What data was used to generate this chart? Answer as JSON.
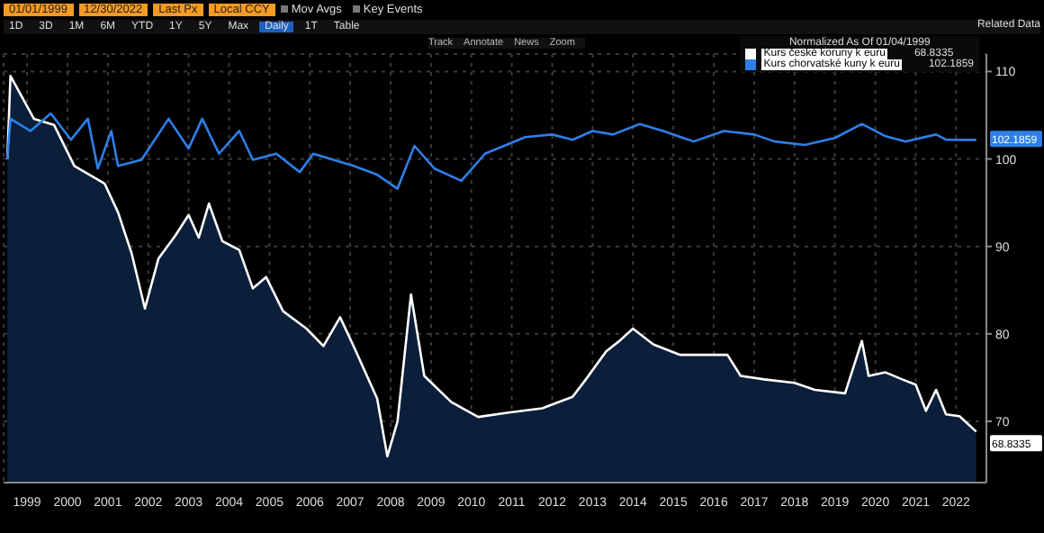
{
  "chart_data": {
    "type": "area",
    "legend_title": "Normalized As Of 01/04/1999",
    "annotations": [
      "01/01/1999",
      "12/30/2022",
      "Last Px",
      "Local CCY",
      "Mov Avgs",
      "Key Events",
      "1D",
      "3D",
      "1M",
      "6M",
      "YTD",
      "1Y",
      "5Y",
      "Max",
      "Daily",
      "1T",
      "Table",
      "Track",
      "Annotate",
      "News",
      "Zoom",
      "Related Data"
    ],
    "series": [
      {
        "name": "Kurs české koruny k euru",
        "color": "#ffffff",
        "x": [
          "1999-01-04",
          "1999-02",
          "1999-09",
          "2000-03",
          "2000-09",
          "2001-06",
          "2001-10",
          "2002-02",
          "2002-06",
          "2002-10",
          "2003-03",
          "2003-07",
          "2003-10",
          "2004-01",
          "2004-05",
          "2004-10",
          "2005-02",
          "2005-06",
          "2005-11",
          "2006-06",
          "2006-11",
          "2007-04",
          "2007-08",
          "2008-03",
          "2008-06",
          "2008-09",
          "2009-01",
          "2009-05",
          "2010-01",
          "2010-09",
          "2011-06",
          "2012-04",
          "2013-01",
          "2013-05",
          "2013-11",
          "2014-03",
          "2014-07",
          "2015-01",
          "2015-09",
          "2016-06",
          "2016-11",
          "2017-03",
          "2017-10",
          "2018-07",
          "2019-01",
          "2019-10",
          "2020-03",
          "2020-05",
          "2020-10",
          "2021-03",
          "2021-07",
          "2021-10",
          "2022-01",
          "2022-04",
          "2022-08",
          "2022-12-30"
        ],
        "values": [
          100,
          109.5,
          104.6,
          103.9,
          99.2,
          97.2,
          93.9,
          89.2,
          82.9,
          88.6,
          91.2,
          93.6,
          91,
          94.9,
          90.6,
          89.6,
          85.2,
          86.5,
          82.6,
          80.6,
          78.6,
          81.9,
          78.6,
          72.6,
          66,
          70,
          84.5,
          75.2,
          72.2,
          70.5,
          71,
          71.5,
          72.8,
          74.8,
          78,
          79.2,
          80.6,
          78.8,
          77.6,
          77.6,
          77.6,
          75.2,
          74.8,
          74.4,
          73.6,
          73.2,
          79.2,
          75.2,
          75.6,
          74.8,
          74.2,
          71.2,
          73.6,
          70.8,
          70.6,
          68.8335
        ],
        "value_labels": [
          null,
          null,
          null,
          null,
          null,
          null,
          null,
          null,
          null,
          null,
          null,
          null,
          null,
          null,
          null,
          null,
          null,
          null,
          null,
          null,
          null,
          null,
          null,
          null,
          null,
          null,
          null,
          null,
          null,
          null,
          null,
          null,
          null,
          null,
          null,
          null,
          null,
          null,
          null,
          null,
          null,
          null,
          null,
          null,
          null,
          null,
          null,
          null,
          null,
          null,
          null,
          null,
          null,
          null,
          null,
          "68.8335"
        ]
      },
      {
        "name": "Kurs chorvatské kuny k euru",
        "type": "line",
        "color": "#2f7fe8",
        "x": [
          "1999-01-04",
          "1999-02",
          "1999-08",
          "2000-02",
          "2000-08",
          "2001-01",
          "2001-04",
          "2001-08",
          "2001-10",
          "2002-05",
          "2003-01",
          "2003-07",
          "2003-11",
          "2004-04",
          "2004-10",
          "2005-02",
          "2005-09",
          "2006-04",
          "2006-08",
          "2007-08",
          "2008-03",
          "2008-09",
          "2009-02",
          "2009-08",
          "2010-04",
          "2010-11",
          "2011-11",
          "2012-07",
          "2013-01",
          "2013-07",
          "2014-01",
          "2014-09",
          "2015-04",
          "2016-01",
          "2016-10",
          "2017-07",
          "2018-01",
          "2018-10",
          "2019-07",
          "2020-03",
          "2020-10",
          "2021-04",
          "2022-01",
          "2022-04",
          "2022-12-30"
        ],
        "values": [
          100,
          104.6,
          103.2,
          105.2,
          102.2,
          104.6,
          98.9,
          103.2,
          99.2,
          99.9,
          104.6,
          101.2,
          104.6,
          100.6,
          103.2,
          99.9,
          100.6,
          98.5,
          100.6,
          99.2,
          98.2,
          96.6,
          101.5,
          98.9,
          97.5,
          100.6,
          102.5,
          102.8,
          102.2,
          103.2,
          102.8,
          104,
          103.2,
          102,
          103.2,
          102.8,
          102,
          101.6,
          102.4,
          104,
          102.6,
          102,
          102.8,
          102.2,
          102.1859
        ],
        "value_labels": [
          null,
          null,
          null,
          null,
          null,
          null,
          null,
          null,
          null,
          null,
          null,
          null,
          null,
          null,
          null,
          null,
          null,
          null,
          null,
          null,
          null,
          null,
          null,
          null,
          null,
          null,
          null,
          null,
          null,
          null,
          null,
          null,
          null,
          null,
          null,
          null,
          null,
          null,
          null,
          null,
          null,
          null,
          null,
          null,
          "102.1859"
        ]
      }
    ],
    "xlim": [
      "1998-12-01",
      "2023-04-01"
    ],
    "xticks": [
      {
        "value": "1999-07-01",
        "label": "1999"
      },
      {
        "value": "2000-07-01",
        "label": "2000"
      },
      {
        "value": "2001-07-01",
        "label": "2001"
      },
      {
        "value": "2002-07-01",
        "label": "2002"
      },
      {
        "value": "2003-07-01",
        "label": "2003"
      },
      {
        "value": "2004-07-01",
        "label": "2004"
      },
      {
        "value": "2005-07-01",
        "label": "2005"
      },
      {
        "value": "2006-07-01",
        "label": "2006"
      },
      {
        "value": "2007-07-01",
        "label": "2007"
      },
      {
        "value": "2008-07-01",
        "label": "2008"
      },
      {
        "value": "2009-07-01",
        "label": "2009"
      },
      {
        "value": "2010-07-01",
        "label": "2010"
      },
      {
        "value": "2011-07-01",
        "label": "2011"
      },
      {
        "value": "2012-07-01",
        "label": "2012"
      },
      {
        "value": "2013-07-01",
        "label": "2013"
      },
      {
        "value": "2014-07-01",
        "label": "2014"
      },
      {
        "value": "2015-07-01",
        "label": "2015"
      },
      {
        "value": "2016-07-01",
        "label": "2016"
      },
      {
        "value": "2017-07-01",
        "label": "2017"
      },
      {
        "value": "2018-07-01",
        "label": "2018"
      },
      {
        "value": "2019-07-01",
        "label": "2019"
      },
      {
        "value": "2020-07-01",
        "label": "2020"
      },
      {
        "value": "2021-07-01",
        "label": "2021"
      },
      {
        "value": "2022-07-01",
        "label": "2022"
      }
    ],
    "ylim": [
      63,
      112
    ],
    "yticks": [
      70,
      80,
      90,
      100,
      110
    ],
    "grid": true,
    "legend": "top right"
  }
}
